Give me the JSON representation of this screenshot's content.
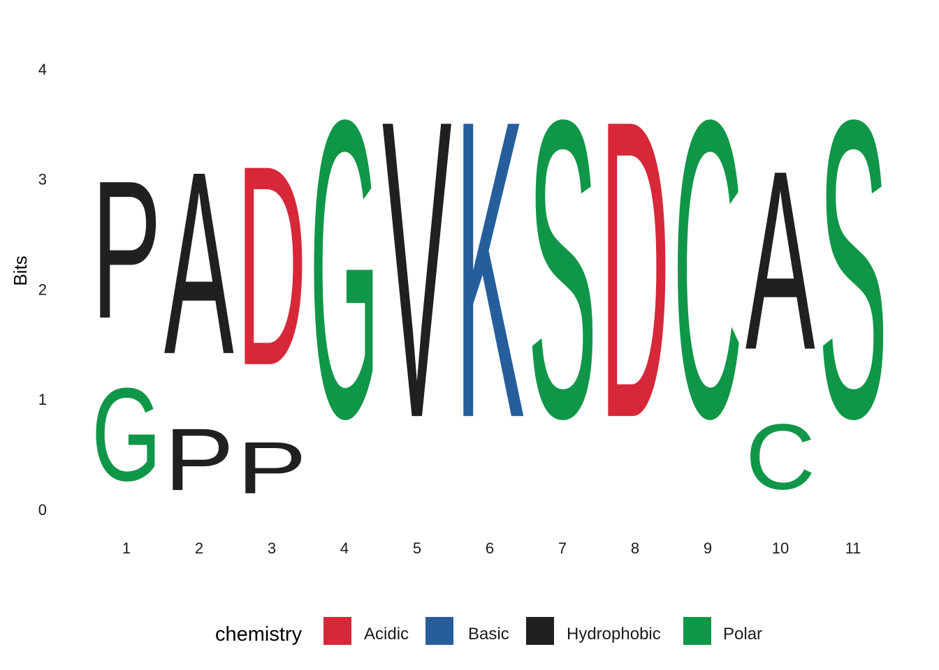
{
  "chart_data": {
    "type": "sequence-logo",
    "ylabel": "Bits",
    "ylim": [
      0,
      4.32
    ],
    "y_ticks": [
      0,
      1,
      2,
      3,
      4
    ],
    "positions": [
      1,
      2,
      3,
      4,
      5,
      6,
      7,
      8,
      9,
      10,
      11
    ],
    "stacks": [
      {
        "position": 1,
        "letters": [
          {
            "char": "G",
            "bits": 1.35,
            "chemistry": "Polar"
          },
          {
            "char": "P",
            "bits": 2.0,
            "chemistry": "Hydrophobic"
          }
        ]
      },
      {
        "position": 2,
        "letters": [
          {
            "char": "P",
            "bits": 0.9,
            "chemistry": "Hydrophobic"
          },
          {
            "char": "A",
            "bits": 2.65,
            "chemistry": "Hydrophobic"
          }
        ]
      },
      {
        "position": 3,
        "letters": [
          {
            "char": "P",
            "bits": 0.75,
            "chemistry": "Hydrophobic"
          },
          {
            "char": "D",
            "bits": 2.9,
            "chemistry": "Acidic"
          }
        ]
      },
      {
        "position": 4,
        "letters": [
          {
            "char": "G",
            "bits": 4.32,
            "chemistry": "Polar"
          }
        ]
      },
      {
        "position": 5,
        "letters": [
          {
            "char": "V",
            "bits": 4.32,
            "chemistry": "Hydrophobic"
          }
        ]
      },
      {
        "position": 6,
        "letters": [
          {
            "char": "K",
            "bits": 4.32,
            "chemistry": "Basic"
          }
        ]
      },
      {
        "position": 7,
        "letters": [
          {
            "char": "S",
            "bits": 4.32,
            "chemistry": "Polar"
          }
        ]
      },
      {
        "position": 8,
        "letters": [
          {
            "char": "D",
            "bits": 4.32,
            "chemistry": "Acidic"
          }
        ]
      },
      {
        "position": 9,
        "letters": [
          {
            "char": "C",
            "bits": 4.32,
            "chemistry": "Polar"
          }
        ]
      },
      {
        "position": 10,
        "letters": [
          {
            "char": "C",
            "bits": 0.95,
            "chemistry": "Polar"
          },
          {
            "char": "A",
            "bits": 2.6,
            "chemistry": "Hydrophobic"
          }
        ]
      },
      {
        "position": 11,
        "letters": [
          {
            "char": "S",
            "bits": 4.32,
            "chemistry": "Polar"
          }
        ]
      }
    ],
    "grid": false,
    "legend": {
      "title": "chemistry",
      "placement": "bottom",
      "entries": [
        {
          "label": "Acidic",
          "color": "#d62839"
        },
        {
          "label": "Basic",
          "color": "#265e9c"
        },
        {
          "label": "Hydrophobic",
          "color": "#221f20"
        },
        {
          "label": "Polar",
          "color": "#109648"
        }
      ]
    }
  }
}
